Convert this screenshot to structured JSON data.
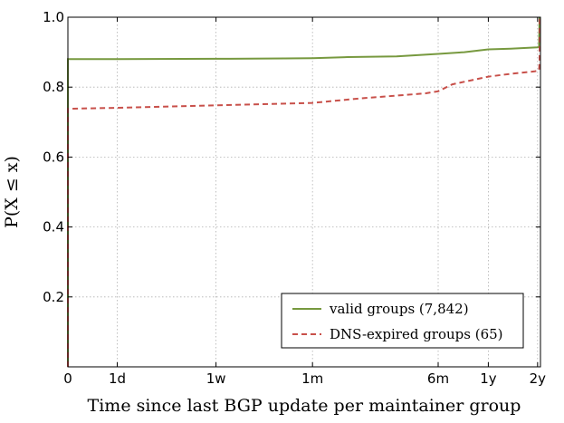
{
  "chart_data": {
    "type": "line",
    "title": "",
    "xlabel": "Time since last BGP update per maintainer group",
    "ylabel": "P(X ≤ x)",
    "x_scale": "log",
    "x_ticks": [
      {
        "label": "0",
        "days": 0
      },
      {
        "label": "1d",
        "days": 1
      },
      {
        "label": "1w",
        "days": 7
      },
      {
        "label": "1m",
        "days": 30
      },
      {
        "label": "6m",
        "days": 180
      },
      {
        "label": "1y",
        "days": 365
      },
      {
        "label": "2y",
        "days": 730
      }
    ],
    "y_ticks": [
      "0.2",
      "0.4",
      "0.6",
      "0.8",
      "1.0"
    ],
    "xlim": [
      0,
      760
    ],
    "ylim": [
      0,
      1.0
    ],
    "grid": true,
    "legend_position": "lower-right",
    "series": [
      {
        "name": "valid groups (7,842)",
        "color": "#77993f",
        "style": "solid",
        "points": [
          [
            0,
            0
          ],
          [
            0,
            0.88
          ],
          [
            1,
            0.88
          ],
          [
            7,
            0.881
          ],
          [
            20,
            0.882
          ],
          [
            30,
            0.883
          ],
          [
            50,
            0.886
          ],
          [
            100,
            0.888
          ],
          [
            180,
            0.895
          ],
          [
            260,
            0.9
          ],
          [
            365,
            0.908
          ],
          [
            500,
            0.91
          ],
          [
            730,
            0.914
          ],
          [
            745,
            0.915
          ],
          [
            750,
            1.0
          ]
        ]
      },
      {
        "name": "DNS-expired groups (65)",
        "color": "#c8504a",
        "style": "dashed",
        "points": [
          [
            0,
            0
          ],
          [
            0,
            0.738
          ],
          [
            1,
            0.741
          ],
          [
            7,
            0.748
          ],
          [
            30,
            0.755
          ],
          [
            60,
            0.768
          ],
          [
            150,
            0.782
          ],
          [
            180,
            0.788
          ],
          [
            220,
            0.808
          ],
          [
            365,
            0.83
          ],
          [
            500,
            0.838
          ],
          [
            700,
            0.845
          ],
          [
            745,
            0.848
          ],
          [
            750,
            0.87
          ],
          [
            752,
            1.0
          ]
        ]
      }
    ]
  }
}
